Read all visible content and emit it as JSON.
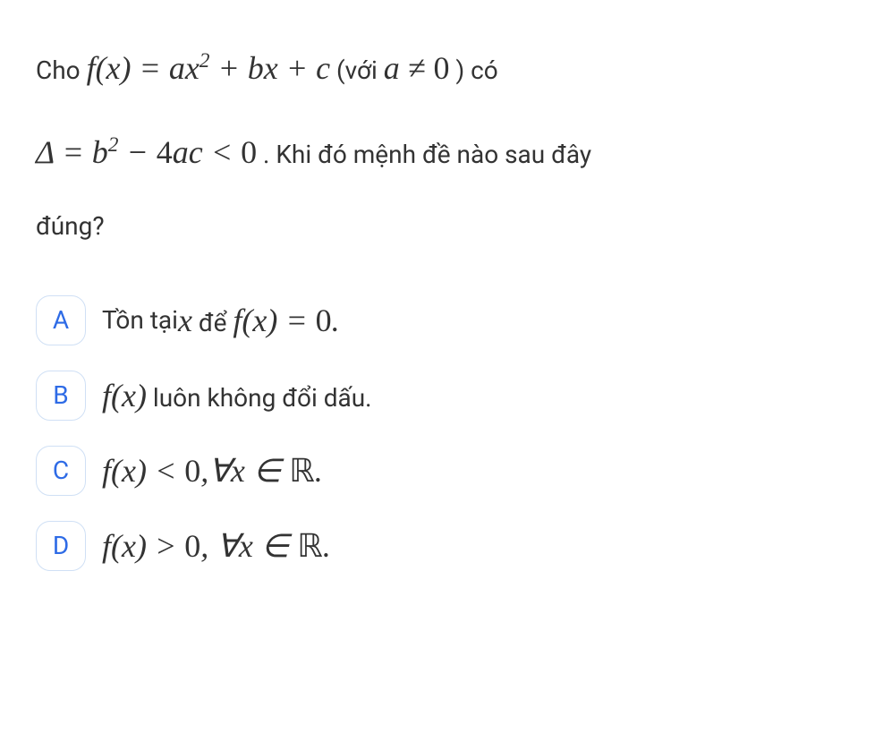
{
  "question": {
    "prefix1": "Cho ",
    "math1_html": "<span class='math'>f(x) = ax<sup>2</sup> + bx + c</span>",
    "prefix2": " (với ",
    "math2_html": "<span class='math'>a ≠ <span class='math-upright'>0</span></span>",
    "suffix2": ") có",
    "line2_math_html": "<span class='math'>Δ = b<sup>2</sup> − <span class='math-upright'>4</span>ac < <span class='math-upright'>0</span></span>",
    "line2_text": ". Khi đó mệnh đề nào sau đây",
    "line3_text": "đúng?"
  },
  "options": [
    {
      "letter": "A",
      "text_prefix": "Tồn tại ",
      "math_html": "<span class='math'>x</span> <span style='font-size:28px;'>để</span> <span class='math'>f(x) = <span class='math-upright'>0</span>.</span>"
    },
    {
      "letter": "B",
      "text_prefix": "",
      "math_html": "<span class='math'>f(x)</span> <span style='font-size:28px;'>luôn không đổi dấu.</span>"
    },
    {
      "letter": "C",
      "text_prefix": "",
      "math_html": "<span class='math'>f(x) < <span class='math-upright'>0</span>,∀x ∈ <span class='bbR'>ℝ</span>.</span>"
    },
    {
      "letter": "D",
      "text_prefix": "",
      "math_html": "<span class='math'>f(x) > <span class='math-upright'>0</span>, ∀x ∈ <span class='bbR'>ℝ</span>.</span>"
    }
  ],
  "styling": {
    "background_color": "#ffffff",
    "text_color": "#333333",
    "option_letter_color": "#2e6be6",
    "option_border_color": "#d0e0f5",
    "body_font_size": 28,
    "math_font_size": 36,
    "option_letter_size": 56,
    "option_letter_radius": 16
  }
}
